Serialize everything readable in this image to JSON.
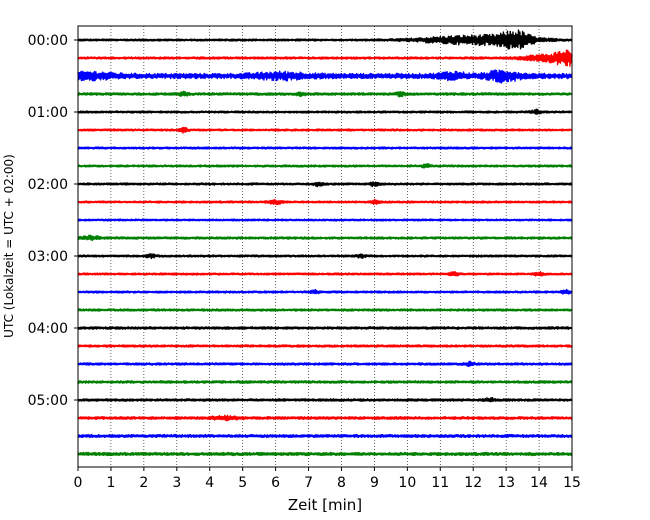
{
  "chart_data": {
    "type": "line",
    "xlabel": "Zeit  [min]",
    "ylabel": "UTC (Lokalzeit = UTC + 02:00)",
    "xlim": [
      0,
      15
    ],
    "x_ticks": [
      "0",
      "1",
      "2",
      "3",
      "4",
      "5",
      "6",
      "7",
      "8",
      "9",
      "10",
      "11",
      "12",
      "13",
      "14",
      "15"
    ],
    "y_ticks": [
      "00:00",
      "01:00",
      "02:00",
      "03:00",
      "04:00",
      "05:00"
    ],
    "grid": "vertical-dotted",
    "trace_interval_minutes": 15,
    "color_cycle": [
      "#000000",
      "#ff0000",
      "#0000ff",
      "#008000"
    ],
    "traces": [
      {
        "start": "00:00",
        "color": "#000000",
        "amplitude": 1.0,
        "events": [
          {
            "t": 11.2,
            "amp": 2.2,
            "w": 0.8
          },
          {
            "t": 12.7,
            "amp": 4.0,
            "w": 0.9
          },
          {
            "t": 13.3,
            "amp": 6.5,
            "w": 0.3
          }
        ]
      },
      {
        "start": "00:15",
        "color": "#ff0000",
        "amplitude": 1.1,
        "events": [
          {
            "t": 14.2,
            "amp": 3.0,
            "w": 0.5
          },
          {
            "t": 14.85,
            "amp": 6.5,
            "w": 0.25
          }
        ]
      },
      {
        "start": "00:30",
        "color": "#0000ff",
        "amplitude": 2.6,
        "events": [
          {
            "t": 0.4,
            "amp": 2.6,
            "w": 0.5
          },
          {
            "t": 6.2,
            "amp": 2.4,
            "w": 0.6
          },
          {
            "t": 11.4,
            "amp": 2.8,
            "w": 0.3
          },
          {
            "t": 12.9,
            "amp": 4.5,
            "w": 0.35
          }
        ]
      },
      {
        "start": "00:45",
        "color": "#008000",
        "amplitude": 1.2,
        "events": [
          {
            "t": 3.2,
            "amp": 1.8,
            "w": 0.1
          },
          {
            "t": 6.8,
            "amp": 1.6,
            "w": 0.1
          },
          {
            "t": 9.8,
            "amp": 1.8,
            "w": 0.1
          }
        ]
      },
      {
        "start": "01:00",
        "color": "#000000",
        "amplitude": 1.0,
        "events": [
          {
            "t": 13.9,
            "amp": 2.2,
            "w": 0.1
          }
        ]
      },
      {
        "start": "01:15",
        "color": "#ff0000",
        "amplitude": 1.0,
        "events": [
          {
            "t": 3.2,
            "amp": 2.2,
            "w": 0.1
          }
        ]
      },
      {
        "start": "01:30",
        "color": "#0000ff",
        "amplitude": 1.0,
        "events": []
      },
      {
        "start": "01:45",
        "color": "#008000",
        "amplitude": 1.0,
        "events": [
          {
            "t": 10.6,
            "amp": 1.8,
            "w": 0.1
          }
        ]
      },
      {
        "start": "02:00",
        "color": "#000000",
        "amplitude": 1.0,
        "events": [
          {
            "t": 7.3,
            "amp": 1.8,
            "w": 0.1
          },
          {
            "t": 9.0,
            "amp": 2.0,
            "w": 0.1
          }
        ]
      },
      {
        "start": "02:15",
        "color": "#ff0000",
        "amplitude": 1.0,
        "events": [
          {
            "t": 6.0,
            "amp": 1.6,
            "w": 0.2
          },
          {
            "t": 9.0,
            "amp": 1.6,
            "w": 0.1
          }
        ]
      },
      {
        "start": "02:30",
        "color": "#0000ff",
        "amplitude": 0.9,
        "events": []
      },
      {
        "start": "02:45",
        "color": "#008000",
        "amplitude": 1.1,
        "events": [
          {
            "t": 0.4,
            "amp": 1.8,
            "w": 0.2
          }
        ]
      },
      {
        "start": "03:00",
        "color": "#000000",
        "amplitude": 1.0,
        "events": [
          {
            "t": 2.2,
            "amp": 1.6,
            "w": 0.1
          },
          {
            "t": 8.6,
            "amp": 1.6,
            "w": 0.1
          }
        ]
      },
      {
        "start": "03:15",
        "color": "#ff0000",
        "amplitude": 1.0,
        "events": [
          {
            "t": 11.4,
            "amp": 1.8,
            "w": 0.1
          },
          {
            "t": 14.0,
            "amp": 1.8,
            "w": 0.1
          }
        ]
      },
      {
        "start": "03:30",
        "color": "#0000ff",
        "amplitude": 1.0,
        "events": [
          {
            "t": 7.2,
            "amp": 1.6,
            "w": 0.1
          },
          {
            "t": 14.8,
            "amp": 1.6,
            "w": 0.1
          }
        ]
      },
      {
        "start": "03:45",
        "color": "#008000",
        "amplitude": 1.1,
        "events": []
      },
      {
        "start": "04:00",
        "color": "#000000",
        "amplitude": 1.2,
        "events": []
      },
      {
        "start": "04:15",
        "color": "#ff0000",
        "amplitude": 1.1,
        "events": []
      },
      {
        "start": "04:30",
        "color": "#0000ff",
        "amplitude": 1.1,
        "events": [
          {
            "t": 11.9,
            "amp": 1.6,
            "w": 0.1
          }
        ]
      },
      {
        "start": "04:45",
        "color": "#008000",
        "amplitude": 1.2,
        "events": []
      },
      {
        "start": "05:00",
        "color": "#000000",
        "amplitude": 1.2,
        "events": [
          {
            "t": 12.5,
            "amp": 1.6,
            "w": 0.1
          }
        ]
      },
      {
        "start": "05:15",
        "color": "#ff0000",
        "amplitude": 1.3,
        "events": [
          {
            "t": 4.5,
            "amp": 1.6,
            "w": 0.3
          }
        ]
      },
      {
        "start": "05:30",
        "color": "#0000ff",
        "amplitude": 1.4,
        "events": []
      },
      {
        "start": "05:45",
        "color": "#008000",
        "amplitude": 1.5,
        "events": []
      }
    ]
  }
}
